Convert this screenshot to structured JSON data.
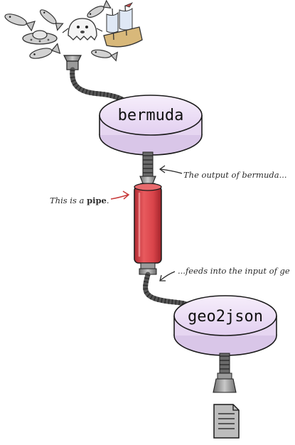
{
  "nodes": [
    {
      "id": "bermuda",
      "label": "bermuda",
      "color": "#efe3f6"
    },
    {
      "id": "geo2json",
      "label": "geo2json",
      "color": "#efe3f6"
    }
  ],
  "annotations": {
    "output_note": "The output of bermuda...",
    "pipe_note_prefix": "This is a ",
    "pipe_note_bold": "pipe",
    "pipe_note_suffix": ".",
    "input_note": "...feeds into the input of ge"
  },
  "icons": [
    "fish-icon",
    "ufo-icon",
    "ghost-icon",
    "ship-icon",
    "funnel-icon",
    "pipe-icon",
    "document-icon"
  ],
  "colors": {
    "disc_fill": "#efe3f6",
    "disc_stroke": "#1a1a1a",
    "pipe_red": "#d9444a",
    "hose_gray": "#555555",
    "coupler_gray": "#8a8a8a"
  }
}
